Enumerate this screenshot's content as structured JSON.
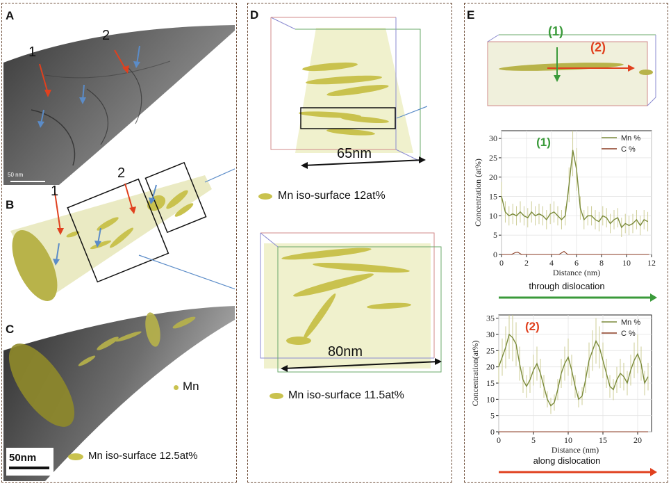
{
  "panels": {
    "A": {
      "letter": "A",
      "scale_text": "50 nm",
      "arrow_label_1": "1",
      "arrow_label_2": "2"
    },
    "B": {
      "letter": "B",
      "arrow_label_1": "1",
      "arrow_label_2": "2"
    },
    "C": {
      "letter": "C",
      "legend_point": "Mn",
      "legend_surface": "Mn iso-surface 12.5at%",
      "scale_text": "50nm"
    },
    "D": {
      "letter": "D",
      "top_dim": "65nm",
      "top_legend": "Mn iso-surface 12at%",
      "bottom_dim": "80nm",
      "bottom_legend": "Mn iso-surface 11.5at%"
    },
    "E": {
      "letter": "E",
      "label_1": "(1)",
      "label_2": "(2)"
    }
  },
  "colors": {
    "green": "#3a9a3a",
    "red": "#e0401e",
    "blue_arrow": "#5b8cc8",
    "mn_line": "#7a8a3a",
    "c_line": "#8a3a20",
    "iso": "#c9c24e"
  },
  "chart_data": [
    {
      "type": "line",
      "panel_label": "(1)",
      "caption": "through dislocation",
      "xlabel": "Distance (nm)",
      "ylabel": "Concentration (at%)",
      "xlim": [
        0,
        12
      ],
      "ylim": [
        0,
        32
      ],
      "xticks": [
        0,
        2,
        4,
        6,
        8,
        10,
        12
      ],
      "yticks": [
        0,
        5,
        10,
        15,
        20,
        25,
        30
      ],
      "legend": "top-right",
      "series": [
        {
          "name": "Mn %",
          "x": [
            0,
            0.3,
            0.6,
            0.9,
            1.2,
            1.5,
            1.8,
            2.1,
            2.4,
            2.7,
            3.0,
            3.3,
            3.6,
            3.9,
            4.2,
            4.5,
            4.8,
            5.1,
            5.4,
            5.7,
            6.0,
            6.3,
            6.6,
            6.9,
            7.2,
            7.5,
            7.8,
            8.1,
            8.4,
            8.7,
            9.0,
            9.3,
            9.6,
            9.9,
            10.2,
            10.5,
            10.8,
            11.1,
            11.4,
            11.7
          ],
          "y": [
            15,
            11,
            10,
            10.5,
            10,
            11,
            10,
            9.5,
            11,
            10,
            10.5,
            10,
            9,
            10.5,
            11,
            10,
            9,
            10,
            18,
            27,
            22,
            12,
            9,
            10,
            10,
            9,
            8.5,
            10,
            9.5,
            8,
            9,
            9.5,
            7,
            8,
            7.5,
            8,
            9,
            7.5,
            9,
            8.5
          ]
        },
        {
          "name": "C %",
          "x": [
            0,
            0.8,
            1.1,
            1.3,
            1.6,
            2,
            4,
            4.6,
            5,
            5.3,
            6,
            8,
            10,
            11.8
          ],
          "y": [
            0,
            0,
            0.5,
            0.6,
            0,
            0,
            0,
            0,
            0.8,
            0,
            0,
            0,
            0,
            0
          ]
        }
      ]
    },
    {
      "type": "line",
      "panel_label": "(2)",
      "caption": "along dislocation",
      "xlabel": "Distance (nm)",
      "ylabel": "Concentration(at%)",
      "xlim": [
        0,
        22
      ],
      "ylim": [
        0,
        36
      ],
      "xticks": [
        0,
        5,
        10,
        15,
        20
      ],
      "yticks": [
        0,
        5,
        10,
        15,
        20,
        25,
        30,
        35
      ],
      "legend": "top-right",
      "series": [
        {
          "name": "Mn %",
          "x": [
            0,
            0.5,
            1,
            1.5,
            2,
            2.5,
            3,
            3.5,
            4,
            4.5,
            5,
            5.5,
            6,
            6.5,
            7,
            7.5,
            8,
            8.5,
            9,
            9.5,
            10,
            10.5,
            11,
            11.5,
            12,
            12.5,
            13,
            13.5,
            14,
            14.5,
            15,
            15.5,
            16,
            16.5,
            17,
            17.5,
            18,
            18.5,
            19,
            19.5,
            20,
            20.5,
            21,
            21.5
          ],
          "y": [
            20,
            23,
            26,
            30,
            29,
            27,
            21,
            16,
            14,
            16,
            19,
            21,
            18,
            14,
            10,
            8,
            9,
            13,
            18,
            21,
            23,
            19,
            14,
            10,
            11,
            16,
            22,
            25,
            28,
            26,
            22,
            18,
            14,
            13,
            16,
            18,
            17,
            15,
            19,
            22,
            24,
            21,
            15,
            17
          ]
        },
        {
          "name": "C %",
          "x": [
            0,
            21.5
          ],
          "y": [
            0,
            0
          ]
        }
      ]
    }
  ]
}
